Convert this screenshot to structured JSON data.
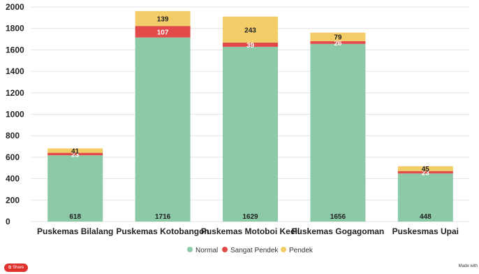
{
  "chart_data": {
    "type": "bar",
    "stacked": true,
    "categories": [
      "Puskemas Bilalang",
      "Puskemas Kotobangon",
      "Puskemas Motoboi Kecil",
      "Puskemas Gogagoman",
      "Puskesmas Upai"
    ],
    "series": [
      {
        "name": "Normal",
        "color": "#8ccaa7",
        "values": [
          618,
          1716,
          1629,
          1656,
          448
        ]
      },
      {
        "name": "Sangat Pendek",
        "color": "#e24a4a",
        "values": [
          23,
          107,
          39,
          26,
          23
        ]
      },
      {
        "name": "Pendek",
        "color": "#f3cd68",
        "values": [
          41,
          139,
          243,
          79,
          45
        ]
      }
    ],
    "ylim": [
      0,
      2000
    ],
    "yticks": [
      "0",
      "200",
      "400",
      "600",
      "800",
      "1000",
      "1200",
      "1400",
      "1600",
      "1800",
      "2000"
    ],
    "grid": true,
    "legend_position": "bottom"
  },
  "footer": {
    "share_label": "Share",
    "made_with_label": "Made with"
  }
}
